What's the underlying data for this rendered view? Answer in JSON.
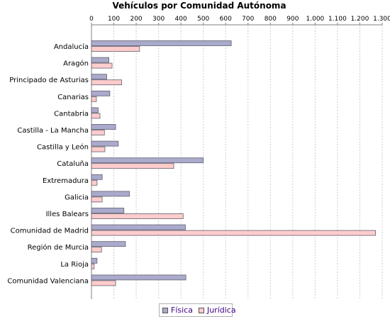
{
  "chart_data": {
    "type": "bar",
    "orientation": "horizontal",
    "title": "Vehículos por Comunidad Autónoma",
    "xlabel": "",
    "ylabel": "",
    "xlim": [
      0,
      1300
    ],
    "x_ticks": [
      "0",
      "100",
      "200",
      "300",
      "400",
      "500",
      "600",
      "700",
      "800",
      "900",
      "1.000",
      "1.100",
      "1.200",
      "1.300"
    ],
    "grid": true,
    "legend_position": "bottom",
    "categories": [
      "Andalucía",
      "Aragón",
      "Principado de Asturias",
      "Canarias",
      "Cantabria",
      "Castilla - La Mancha",
      "Castilla y León",
      "Cataluña",
      "Extremadura",
      "Galicia",
      "Illes Balears",
      "Comunidad de Madrid",
      "Región de Murcia",
      "La Rioja",
      "Comunidad Valenciana"
    ],
    "series": [
      {
        "name": "Física",
        "color": "#aaaacc",
        "values": [
          625,
          78,
          68,
          82,
          30,
          108,
          120,
          500,
          48,
          170,
          145,
          420,
          152,
          25,
          422
        ]
      },
      {
        "name": "Jurídica",
        "color": "#ffcccc",
        "values": [
          215,
          92,
          135,
          22,
          38,
          58,
          60,
          368,
          25,
          48,
          410,
          1270,
          45,
          12,
          108
        ]
      }
    ]
  }
}
